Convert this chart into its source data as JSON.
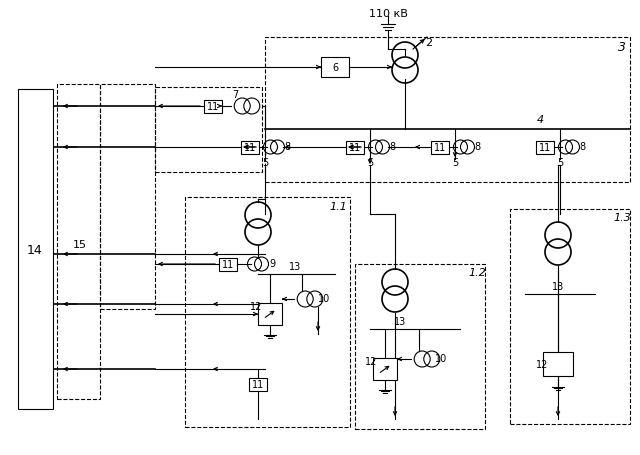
{
  "fig_w": 6.4,
  "fig_h": 4.56,
  "dpi": 100,
  "bg": "#ffffff",
  "lc": "#000000",
  "lw": 0.8,
  "lw2": 1.2
}
